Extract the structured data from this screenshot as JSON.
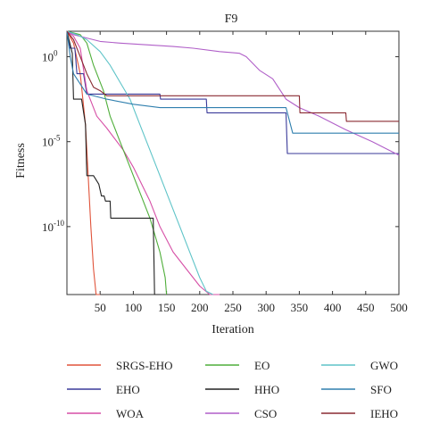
{
  "chart_data": {
    "type": "line",
    "title": "F9",
    "xlabel": "Iteration",
    "ylabel": "Fitness",
    "xlim": [
      0,
      500
    ],
    "ylog_exp_range": [
      -14,
      1.5
    ],
    "yscale": "log",
    "grid": false,
    "legend_position": "bottom",
    "x_ticks": [
      50,
      100,
      150,
      200,
      250,
      300,
      350,
      400,
      450,
      500
    ],
    "x_tick_labels": [
      "50",
      "100",
      "150",
      "200",
      "250",
      "300",
      "350",
      "400",
      "450",
      "500"
    ],
    "y_ticks": [
      0,
      -5,
      -10
    ],
    "y_tick_labels": [
      {
        "base": "10",
        "exp": "0"
      },
      {
        "base": "10",
        "exp": "-5"
      },
      {
        "base": "10",
        "exp": "-10"
      }
    ],
    "series": [
      {
        "name": "SRGS-EHO",
        "color": "#e0533a",
        "x": [
          0,
          10,
          20,
          28,
          32,
          36,
          40,
          44,
          50
        ],
        "y_log10": [
          1.5,
          0.8,
          -1.0,
          -4.0,
          -7.0,
          -10.0,
          -12.5,
          -14,
          -14
        ]
      },
      {
        "name": "EHO",
        "color": "#3a3a9a",
        "x": [
          0,
          5,
          12,
          15,
          25,
          30,
          90,
          140,
          141,
          210,
          211,
          330,
          332,
          500
        ],
        "y_log10": [
          1.5,
          0.5,
          0.5,
          -1.0,
          -1.0,
          -2.2,
          -2.2,
          -2.2,
          -2.5,
          -2.5,
          -3.3,
          -3.3,
          -5.7,
          -5.7
        ]
      },
      {
        "name": "WOA",
        "color": "#d64fa6",
        "x": [
          0,
          10,
          20,
          30,
          35,
          45,
          60,
          85,
          100,
          125,
          140,
          160,
          180,
          200,
          215,
          230
        ],
        "y_log10": [
          1.5,
          1.2,
          0.5,
          -2.0,
          -2.5,
          -3.5,
          -4.2,
          -5.5,
          -6.5,
          -8.5,
          -10.0,
          -11.5,
          -12.5,
          -13.5,
          -14,
          -14
        ]
      },
      {
        "name": "EO",
        "color": "#4fae3a",
        "x": [
          0,
          20,
          30,
          40,
          55,
          65,
          80,
          95,
          110,
          125,
          140,
          148,
          150
        ],
        "y_log10": [
          1.5,
          1.3,
          0.8,
          -0.5,
          -2.0,
          -3.5,
          -5.0,
          -6.5,
          -8.0,
          -9.5,
          -11.5,
          -13.0,
          -14
        ]
      },
      {
        "name": "HHO",
        "color": "#222222",
        "x": [
          0,
          8,
          10,
          22,
          28,
          30,
          40,
          48,
          52,
          56,
          58,
          65,
          66,
          110,
          130,
          132,
          135,
          138,
          140
        ],
        "y_log10": [
          1.5,
          0.2,
          -2.5,
          -2.5,
          -4.0,
          -7.0,
          -7.0,
          -7.5,
          -8.2,
          -8.2,
          -8.5,
          -8.5,
          -9.5,
          -9.5,
          -9.5,
          -14,
          -14,
          -14,
          -14
        ]
      },
      {
        "name": "CSO",
        "color": "#b05fc8",
        "x": [
          0,
          10,
          30,
          50,
          80,
          120,
          160,
          190,
          230,
          260,
          270,
          290,
          310,
          330,
          350,
          380,
          420,
          460,
          500
        ],
        "y_log10": [
          1.5,
          1.3,
          1.1,
          0.9,
          0.8,
          0.7,
          0.6,
          0.5,
          0.3,
          0.2,
          0.0,
          -0.8,
          -1.3,
          -2.5,
          -3.0,
          -3.5,
          -4.3,
          -5.0,
          -5.8
        ]
      },
      {
        "name": "GWO",
        "color": "#5fc4c8",
        "x": [
          0,
          15,
          30,
          50,
          65,
          80,
          95,
          110,
          125,
          140,
          155,
          170,
          185,
          200,
          210,
          220
        ],
        "y_log10": [
          1.5,
          1.3,
          1.0,
          0.3,
          -0.5,
          -1.5,
          -2.5,
          -4.0,
          -5.5,
          -7.0,
          -8.5,
          -10.0,
          -11.5,
          -13.0,
          -13.8,
          -14
        ]
      },
      {
        "name": "SFO",
        "color": "#2f7fae",
        "x": [
          0,
          5,
          10,
          30,
          60,
          100,
          140,
          180,
          190,
          250,
          260,
          330,
          340,
          500
        ],
        "y_log10": [
          1.5,
          0.0,
          -1.0,
          -2.2,
          -2.5,
          -2.8,
          -3.0,
          -3.0,
          -3.0,
          -3.0,
          -3.0,
          -3.0,
          -4.5,
          -4.5
        ]
      },
      {
        "name": "IEHO",
        "color": "#8a2a32",
        "x": [
          0,
          10,
          20,
          30,
          40,
          50,
          60,
          80,
          120,
          200,
          300,
          350,
          351,
          420,
          421,
          500
        ],
        "y_log10": [
          1.5,
          1.0,
          0.0,
          -1.0,
          -1.8,
          -2.0,
          -2.3,
          -2.3,
          -2.3,
          -2.3,
          -2.3,
          -2.3,
          -3.3,
          -3.3,
          -3.8,
          -3.8
        ]
      }
    ]
  }
}
